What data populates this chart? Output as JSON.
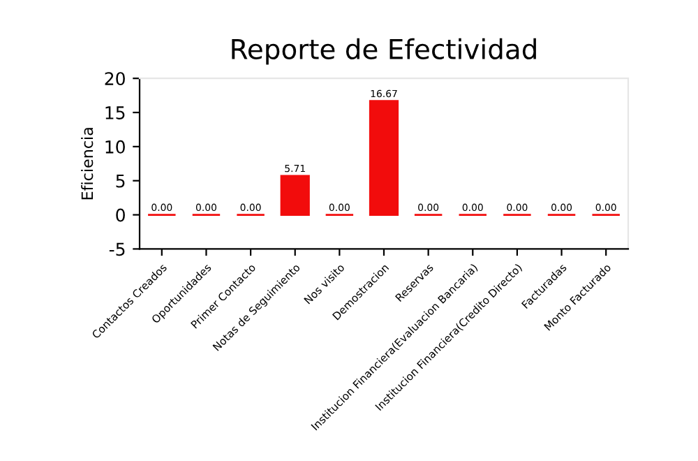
{
  "chart_data": {
    "type": "bar",
    "title": "Reporte de Efectividad",
    "ylabel": "Eficiencia",
    "categories": [
      "Contactos Creados",
      "Oportunidades",
      "Primer Contacto",
      "Notas de Seguimiento",
      "Nos visito",
      "Demostracion",
      "Reservas",
      "Institucion Financiera(Evaluacion Bancaria)",
      "Institucion Financiera(Credito Directo)",
      "Facturadas",
      "Monto Facturado"
    ],
    "values": [
      0,
      0,
      0,
      5.71,
      0,
      16.67,
      0,
      0,
      0,
      0,
      0
    ],
    "value_labels": [
      "0.00",
      "0.00",
      "0.00",
      "5.71",
      "0.00",
      "16.67",
      "0.00",
      "0.00",
      "0.00",
      "0.00",
      "0.00"
    ],
    "color": "#f20c0c",
    "ylim": [
      -5,
      20
    ],
    "yticks": [
      -5,
      0,
      5,
      10,
      15,
      20
    ],
    "grid": false,
    "legend": false
  }
}
